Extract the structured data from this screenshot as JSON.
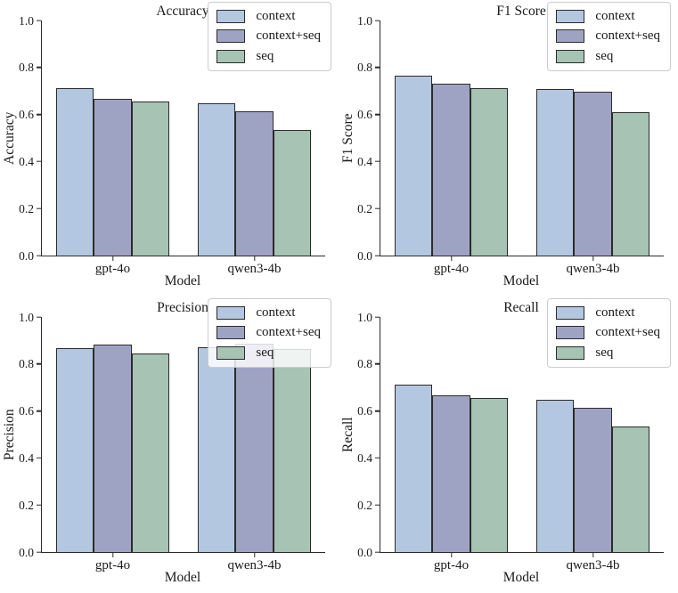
{
  "palette": {
    "context": "#b4c7e0",
    "context+seq": "#9fa3c3",
    "seq": "#a6c3b4",
    "bar_edge": "#2b2b2b",
    "axis_color": "#2b2b2b",
    "legend_border": "#cccccc"
  },
  "chart_data": [
    {
      "type": "bar",
      "title": "Accuracy",
      "ylabel": "Accuracy",
      "xlabel": "Model",
      "categories": [
        "gpt-4o",
        "qwen3-4b"
      ],
      "series": [
        {
          "name": "context",
          "values": [
            0.713,
            0.646
          ]
        },
        {
          "name": "context+seq",
          "values": [
            0.665,
            0.614
          ]
        },
        {
          "name": "seq",
          "values": [
            0.654,
            0.536
          ]
        }
      ],
      "ylim": [
        0.0,
        1.0
      ],
      "yticks": [
        "0.0",
        "0.2",
        "0.4",
        "0.6",
        "0.8",
        "1.0"
      ],
      "legend_position": "upper right",
      "grid": false
    },
    {
      "type": "bar",
      "title": "F1 Score",
      "ylabel": "F1 Score",
      "xlabel": "Model",
      "categories": [
        "gpt-4o",
        "qwen3-4b"
      ],
      "series": [
        {
          "name": "context",
          "values": [
            0.767,
            0.708
          ]
        },
        {
          "name": "context+seq",
          "values": [
            0.733,
            0.697
          ]
        },
        {
          "name": "seq",
          "values": [
            0.712,
            0.611
          ]
        }
      ],
      "ylim": [
        0.0,
        1.0
      ],
      "yticks": [
        "0.0",
        "0.2",
        "0.4",
        "0.6",
        "0.8",
        "1.0"
      ],
      "legend_position": "upper right",
      "grid": false
    },
    {
      "type": "bar",
      "title": "Precision",
      "ylabel": "Precision",
      "xlabel": "Model",
      "categories": [
        "gpt-4o",
        "qwen3-4b"
      ],
      "series": [
        {
          "name": "context",
          "values": [
            0.868,
            0.873
          ]
        },
        {
          "name": "context+seq",
          "values": [
            0.883,
            0.885
          ]
        },
        {
          "name": "seq",
          "values": [
            0.845,
            0.862
          ]
        }
      ],
      "ylim": [
        0.0,
        1.0
      ],
      "yticks": [
        "0.0",
        "0.2",
        "0.4",
        "0.6",
        "0.8",
        "1.0"
      ],
      "legend_position": "upper right",
      "grid": false
    },
    {
      "type": "bar",
      "title": "Recall",
      "ylabel": "Recall",
      "xlabel": "Model",
      "categories": [
        "gpt-4o",
        "qwen3-4b"
      ],
      "series": [
        {
          "name": "context",
          "values": [
            0.713,
            0.646
          ]
        },
        {
          "name": "context+seq",
          "values": [
            0.665,
            0.614
          ]
        },
        {
          "name": "seq",
          "values": [
            0.654,
            0.536
          ]
        }
      ],
      "ylim": [
        0.0,
        1.0
      ],
      "yticks": [
        "0.0",
        "0.2",
        "0.4",
        "0.6",
        "0.8",
        "1.0"
      ],
      "legend_position": "upper right",
      "grid": false
    }
  ]
}
